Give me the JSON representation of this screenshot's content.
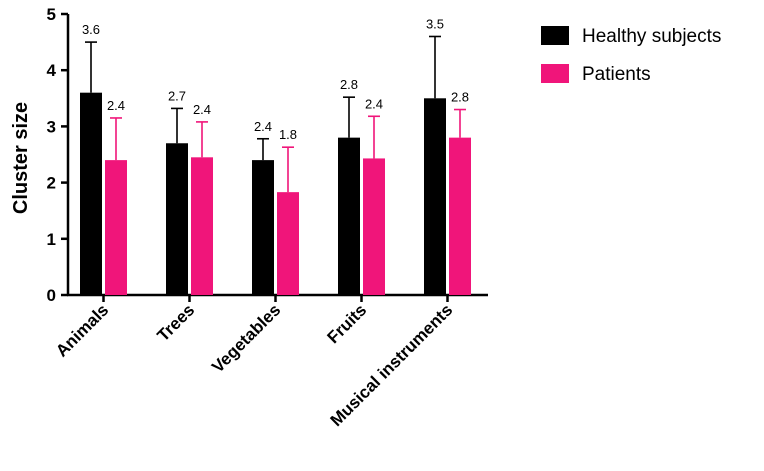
{
  "chart_data": {
    "type": "bar",
    "categories": [
      "Animals",
      "Trees",
      "Vegetables",
      "Fruits",
      "Musical instruments"
    ],
    "series": [
      {
        "name": "Healthy subjects",
        "color": "#000000",
        "values": [
          3.6,
          2.7,
          2.4,
          2.8,
          3.5
        ],
        "labels": [
          "3.6",
          "2.7",
          "2.4",
          "2.8",
          "3.5"
        ],
        "error": [
          0.9,
          0.62,
          0.38,
          0.72,
          1.1
        ]
      },
      {
        "name": "Patients",
        "color": "#f0157a",
        "values": [
          2.4,
          2.45,
          1.83,
          2.43,
          2.8
        ],
        "labels": [
          "2.4",
          "2.4",
          "1.8",
          "2.4",
          "2.8"
        ],
        "error": [
          0.75,
          0.63,
          0.8,
          0.75,
          0.5
        ]
      }
    ],
    "ylabel": "Cluster size",
    "ylim": [
      0,
      5
    ],
    "yticks": [
      "0",
      "1",
      "2",
      "3",
      "4",
      "5"
    ],
    "legend_position": "top-right",
    "grid": false
  }
}
